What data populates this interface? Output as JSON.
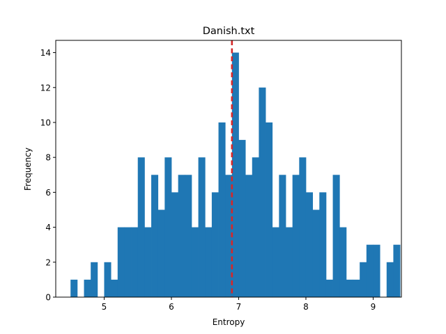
{
  "chart_data": {
    "type": "bar",
    "subtype": "histogram",
    "title": "Danish.txt",
    "xlabel": "Entropy",
    "ylabel": "Frequency",
    "xlim": [
      4.28,
      9.42
    ],
    "ylim": [
      0,
      14.7
    ],
    "xticks": [
      5,
      6,
      7,
      8,
      9
    ],
    "yticks": [
      0,
      2,
      4,
      6,
      8,
      10,
      12,
      14
    ],
    "bar_color": "#1f77b4",
    "bin_start": 4.5,
    "bin_width": 0.1,
    "counts": [
      1,
      0,
      1,
      2,
      0,
      2,
      1,
      4,
      4,
      4,
      8,
      4,
      7,
      5,
      8,
      6,
      7,
      7,
      4,
      8,
      4,
      6,
      10,
      7,
      14,
      9,
      7,
      8,
      12,
      10,
      4,
      7,
      4,
      7,
      8,
      6,
      5,
      6,
      1,
      7,
      4,
      1,
      1,
      2,
      3,
      3,
      0,
      2,
      3
    ],
    "mean_line": {
      "x": 6.9,
      "color": "#d62728",
      "style": "dashed"
    },
    "grid": false,
    "legend": "none"
  }
}
